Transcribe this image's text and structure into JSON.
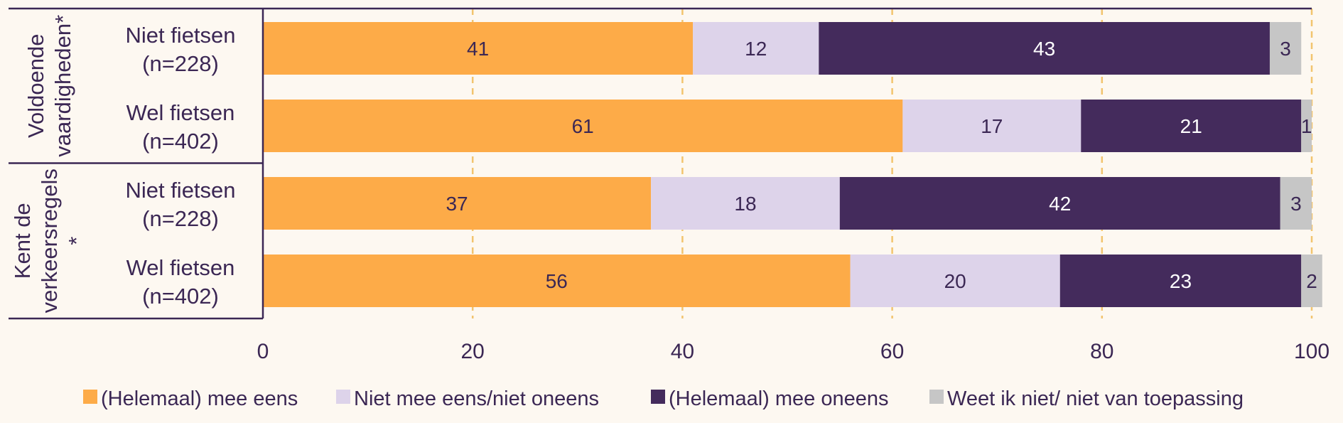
{
  "colors": {
    "background": "#fdf8f1",
    "grid": "#f2c46e",
    "axis_line": "#3b2754",
    "text": "#3b2754"
  },
  "chart_data": {
    "type": "bar",
    "orientation": "horizontal",
    "stacked": true,
    "xlim": [
      0,
      100
    ],
    "x_ticks": [
      "0",
      "20",
      "40",
      "60",
      "80",
      "100"
    ],
    "grid": "vertical dashed",
    "legend_position": "bottom",
    "groups": [
      {
        "label_lines": [
          "Voldoende",
          "vaardigheden*"
        ],
        "categories": [
          {
            "label_lines": [
              "Niet fietsen",
              "(n=228)"
            ],
            "values": [
              41,
              12,
              43,
              3
            ]
          },
          {
            "label_lines": [
              "Wel fietsen",
              "(n=402)"
            ],
            "values": [
              61,
              17,
              21,
              1
            ]
          }
        ]
      },
      {
        "label_lines": [
          "Kent de",
          "verkeersregels",
          "*"
        ],
        "categories": [
          {
            "label_lines": [
              "Niet fietsen",
              "(n=228)"
            ],
            "values": [
              37,
              18,
              42,
              3
            ]
          },
          {
            "label_lines": [
              "Wel fietsen",
              "(n=402)"
            ],
            "values": [
              56,
              20,
              23,
              2
            ]
          }
        ]
      }
    ],
    "series": [
      {
        "name": "(Helemaal) mee eens",
        "color": "#fdab48",
        "label_color": "#3b2754"
      },
      {
        "name": "Niet mee eens/niet oneens",
        "color": "#ddd3ea",
        "label_color": "#3b2754"
      },
      {
        "name": "(Helemaal) mee oneens",
        "color": "#442b5c",
        "label_color": "#ffffff"
      },
      {
        "name": "Weet ik niet/ niet van toepassing",
        "color": "#c6c6c6",
        "label_color": "#3b2754"
      }
    ]
  }
}
